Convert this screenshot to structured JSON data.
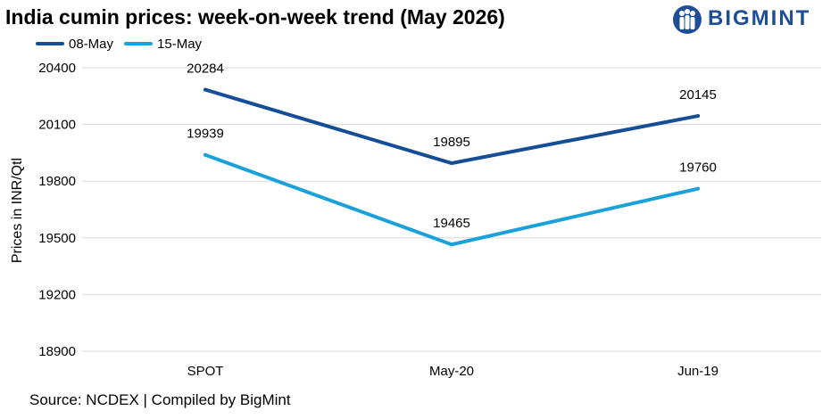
{
  "title": "India cumin prices: week-on-week trend (May 2026)",
  "logo": {
    "text": "BIGMINT",
    "icon": "bigmint-people-icon",
    "color": "#1f4e99"
  },
  "source": "Source: NCDEX | Compiled by BigMint",
  "colors": {
    "series_08_may": "#154e96",
    "series_15_may": "#1ba1da",
    "grid": "#d9d9d9"
  },
  "chart_data": {
    "type": "line",
    "title": "India cumin prices: week-on-week trend (May 2026)",
    "xlabel": "",
    "ylabel": "Prices in INR/Qtl",
    "categories": [
      "SPOT",
      "May-20",
      "Jun-19"
    ],
    "ylim": [
      18900,
      20400
    ],
    "yticks": [
      18900,
      19200,
      19500,
      19800,
      20100,
      20400
    ],
    "grid": true,
    "legend_position": "top-left",
    "series": [
      {
        "name": "08-May",
        "values": [
          20284,
          19895,
          20145
        ],
        "color": "#154e96"
      },
      {
        "name": "15-May",
        "values": [
          19939,
          19465,
          19760
        ],
        "color": "#1ba1da"
      }
    ]
  }
}
